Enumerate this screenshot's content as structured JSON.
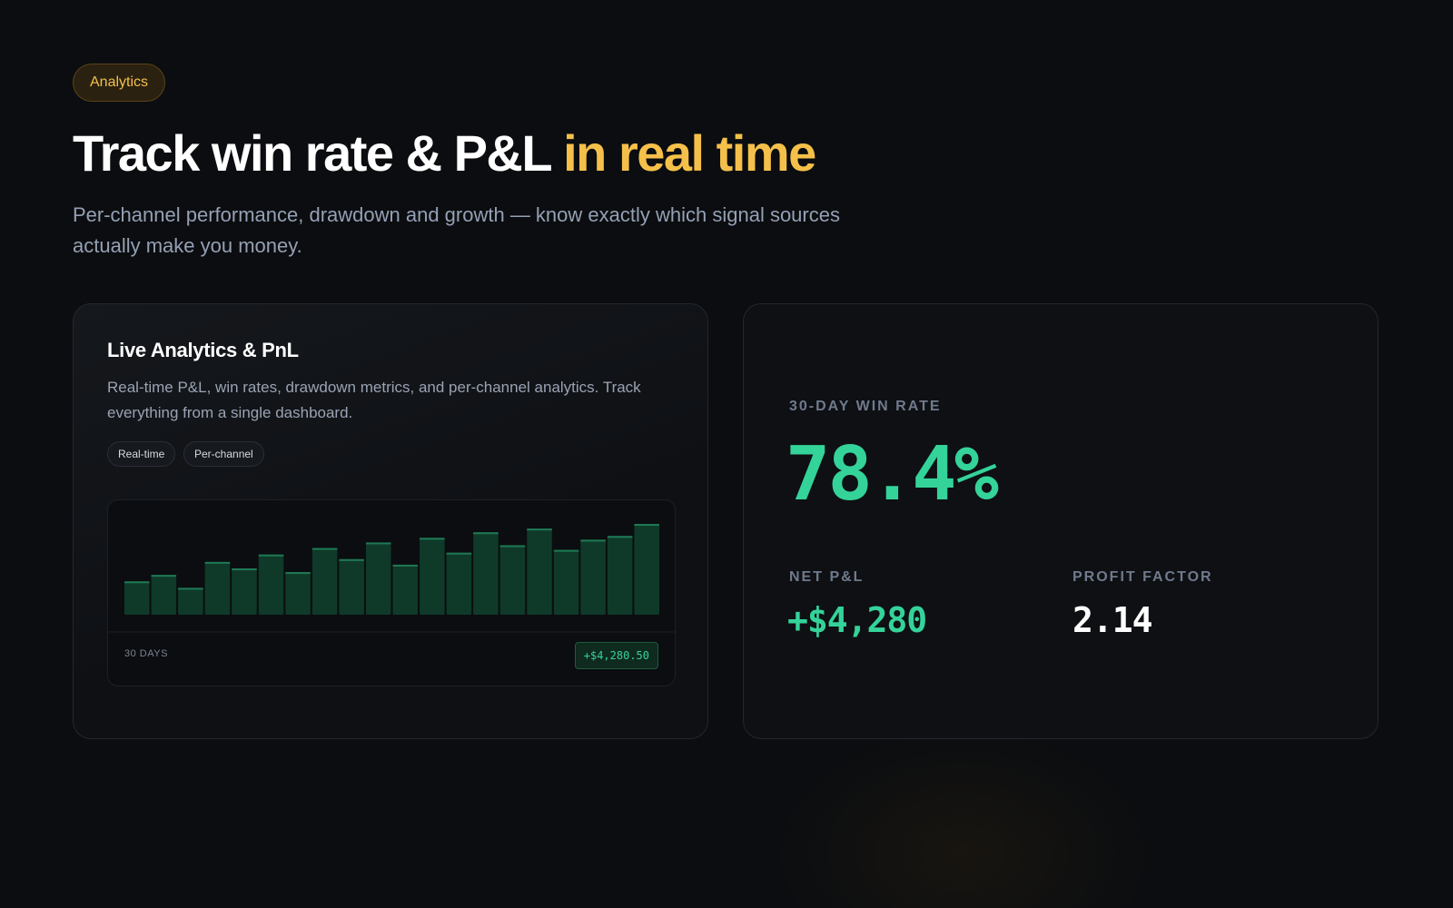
{
  "badge": "Analytics",
  "heading": {
    "main": "Track win rate & P&L",
    "highlight": "in real time"
  },
  "subtitle": "Per-channel performance, drawdown and growth — know exactly which signal sources actually make you money.",
  "card": {
    "title": "Live Analytics & PnL",
    "description": "Real-time P&L, win rates, drawdown metrics, and per-channel analytics. Track everything from a single dashboard.",
    "tags": [
      "Real-time",
      "Per-channel"
    ]
  },
  "chart_data": {
    "type": "bar",
    "values": [
      36,
      43,
      29,
      57,
      50,
      65,
      46,
      72,
      60,
      78,
      54,
      83,
      67,
      89,
      75,
      93,
      70,
      81,
      85,
      98
    ],
    "ylim": [
      0,
      100
    ],
    "color": "#0f3a29",
    "top_color": "#1f7a55",
    "footer": "30 DAYS",
    "total": "+$4,280.50"
  },
  "stats": {
    "win_rate_label": "30-DAY WIN RATE",
    "win_rate": "78.4%",
    "net_pnl_label": "NET P&L",
    "net_pnl": "+$4,280",
    "profit_factor_label": "PROFIT FACTOR",
    "profit_factor": "2.14"
  }
}
